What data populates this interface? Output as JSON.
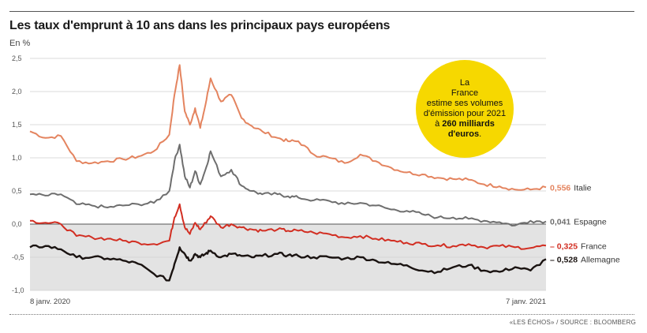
{
  "title": "Les taux d'emprunt à 10 ans dans les principaux pays européens",
  "unit_label": "En %",
  "source": "«LES ÉCHOS» / SOURCE : BLOOMBERG",
  "callout": {
    "line1": "La",
    "line2": "France",
    "line3": "estime ses volumes",
    "line4": "d'émission pour 2021",
    "line5_prefix": "à ",
    "line5_bold": "260 milliards",
    "line6_bold": "d'euros",
    "line6_suffix": "."
  },
  "colors": {
    "italie": "#e4845f",
    "espagne": "#6e6e6e",
    "france": "#d22e22",
    "allemagne": "#1a1311",
    "negative_zone": "#e3e3e3",
    "callout": "#f6d800"
  },
  "chart_data": {
    "type": "line",
    "title": "Les taux d'emprunt à 10 ans dans les principaux pays européens",
    "ylabel": "En %",
    "ylim": [
      -1.0,
      2.5
    ],
    "yticks": [
      2.5,
      2.0,
      1.5,
      1.0,
      0.5,
      0.0,
      -0.5,
      -1.0
    ],
    "ytick_labels": [
      "2,5",
      "2,0",
      "1,5",
      "1,0",
      "0,5",
      "0,0",
      "-0,5",
      "-1,0"
    ],
    "grid": "horizontal",
    "shaded_negative_zone": true,
    "xlabels": {
      "start": "8 janv. 2020",
      "end": "7 janv. 2021"
    },
    "x": [
      0,
      0.03,
      0.06,
      0.09,
      0.12,
      0.15,
      0.18,
      0.21,
      0.24,
      0.27,
      0.28,
      0.29,
      0.3,
      0.31,
      0.32,
      0.33,
      0.34,
      0.35,
      0.37,
      0.39,
      0.41,
      0.43,
      0.45,
      0.48,
      0.5,
      0.52,
      0.55,
      0.58,
      0.61,
      0.64,
      0.67,
      0.7,
      0.73,
      0.76,
      0.79,
      0.82,
      0.85,
      0.88,
      0.91,
      0.94,
      0.97,
      1
    ],
    "series": [
      {
        "name": "Italie",
        "value_label": "0,556",
        "values": [
          1.4,
          1.3,
          1.33,
          0.95,
          0.92,
          0.95,
          0.98,
          1.02,
          1.1,
          1.35,
          1.95,
          2.4,
          1.7,
          1.5,
          1.75,
          1.45,
          1.8,
          2.2,
          1.85,
          1.95,
          1.6,
          1.48,
          1.4,
          1.3,
          1.25,
          1.25,
          1.05,
          1.0,
          0.92,
          1.05,
          0.95,
          0.85,
          0.78,
          0.75,
          0.7,
          0.68,
          0.67,
          0.6,
          0.57,
          0.52,
          0.52,
          0.556
        ]
      },
      {
        "name": "Espagne",
        "value_label": "0,041",
        "values": [
          0.45,
          0.43,
          0.45,
          0.3,
          0.28,
          0.25,
          0.28,
          0.3,
          0.32,
          0.5,
          0.95,
          1.2,
          0.72,
          0.55,
          0.8,
          0.6,
          0.82,
          1.1,
          0.72,
          0.82,
          0.58,
          0.5,
          0.45,
          0.45,
          0.42,
          0.4,
          0.36,
          0.35,
          0.3,
          0.32,
          0.28,
          0.22,
          0.2,
          0.15,
          0.1,
          0.1,
          0.08,
          0.05,
          0.03,
          -0.02,
          0.05,
          0.041
        ]
      },
      {
        "name": "France",
        "value_label": "– 0,325",
        "values": [
          0.05,
          0.02,
          0.0,
          -0.18,
          -0.2,
          -0.22,
          -0.25,
          -0.28,
          -0.3,
          -0.25,
          0.1,
          0.3,
          -0.05,
          -0.15,
          0.02,
          -0.08,
          0.02,
          0.12,
          -0.05,
          0.0,
          -0.05,
          -0.08,
          -0.1,
          -0.08,
          -0.1,
          -0.1,
          -0.13,
          -0.15,
          -0.2,
          -0.18,
          -0.22,
          -0.25,
          -0.28,
          -0.3,
          -0.32,
          -0.33,
          -0.3,
          -0.35,
          -0.33,
          -0.35,
          -0.36,
          -0.325
        ]
      },
      {
        "name": "Allemagne",
        "value_label": "– 0,528",
        "values": [
          -0.35,
          -0.33,
          -0.38,
          -0.5,
          -0.5,
          -0.52,
          -0.55,
          -0.6,
          -0.75,
          -0.85,
          -0.6,
          -0.35,
          -0.45,
          -0.55,
          -0.45,
          -0.5,
          -0.45,
          -0.4,
          -0.5,
          -0.45,
          -0.48,
          -0.5,
          -0.48,
          -0.45,
          -0.47,
          -0.48,
          -0.5,
          -0.5,
          -0.52,
          -0.5,
          -0.55,
          -0.6,
          -0.62,
          -0.7,
          -0.72,
          -0.65,
          -0.62,
          -0.7,
          -0.72,
          -0.65,
          -0.7,
          -0.528
        ]
      }
    ]
  }
}
